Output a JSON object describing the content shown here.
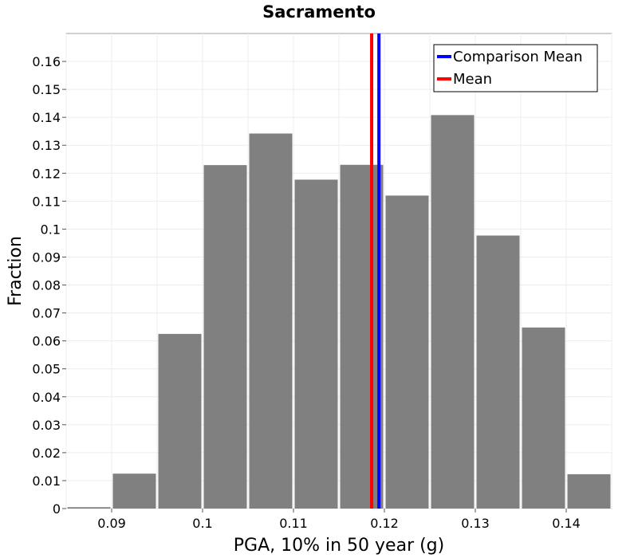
{
  "chart_data": {
    "type": "bar",
    "title": "Sacramento",
    "xlabel": "PGA, 10% in 50 year (g)",
    "ylabel": "Fraction",
    "xlim": [
      0.085,
      0.145
    ],
    "ylim": [
      0,
      0.17
    ],
    "x_ticks": [
      {
        "value": 0.09,
        "label": "0.09"
      },
      {
        "value": 0.1,
        "label": "0.1"
      },
      {
        "value": 0.11,
        "label": "0.11"
      },
      {
        "value": 0.12,
        "label": "0.12"
      },
      {
        "value": 0.13,
        "label": "0.13"
      },
      {
        "value": 0.14,
        "label": "0.14"
      }
    ],
    "y_ticks": [
      {
        "value": 0,
        "label": "0"
      },
      {
        "value": 0.01,
        "label": "0.01"
      },
      {
        "value": 0.02,
        "label": "0.02"
      },
      {
        "value": 0.03,
        "label": "0.03"
      },
      {
        "value": 0.04,
        "label": "0.04"
      },
      {
        "value": 0.05,
        "label": "0.05"
      },
      {
        "value": 0.06,
        "label": "0.06"
      },
      {
        "value": 0.07,
        "label": "0.07"
      },
      {
        "value": 0.08,
        "label": "0.08"
      },
      {
        "value": 0.09,
        "label": "0.09"
      },
      {
        "value": 0.1,
        "label": "0.1"
      },
      {
        "value": 0.11,
        "label": "0.11"
      },
      {
        "value": 0.12,
        "label": "0.12"
      },
      {
        "value": 0.13,
        "label": "0.13"
      },
      {
        "value": 0.14,
        "label": "0.14"
      },
      {
        "value": 0.15,
        "label": "0.15"
      },
      {
        "value": 0.16,
        "label": "0.16"
      }
    ],
    "bin_width": 0.005,
    "bins": [
      {
        "center": 0.0875,
        "value": 0.0005
      },
      {
        "center": 0.0925,
        "value": 0.0125
      },
      {
        "center": 0.0975,
        "value": 0.0625
      },
      {
        "center": 0.1025,
        "value": 0.1229
      },
      {
        "center": 0.1075,
        "value": 0.1342
      },
      {
        "center": 0.1125,
        "value": 0.1177
      },
      {
        "center": 0.1175,
        "value": 0.123
      },
      {
        "center": 0.1225,
        "value": 0.112
      },
      {
        "center": 0.1275,
        "value": 0.1408
      },
      {
        "center": 0.1325,
        "value": 0.0977
      },
      {
        "center": 0.1375,
        "value": 0.0648
      },
      {
        "center": 0.1425,
        "value": 0.0123
      }
    ],
    "vertical_lines": [
      {
        "name": "Comparison Mean",
        "x": 0.1194,
        "color": "#0000ff"
      },
      {
        "name": "Mean",
        "x": 0.1186,
        "color": "#ff0000"
      }
    ],
    "bar_color": "#808080",
    "grid": true,
    "legend_position": "top-right"
  }
}
